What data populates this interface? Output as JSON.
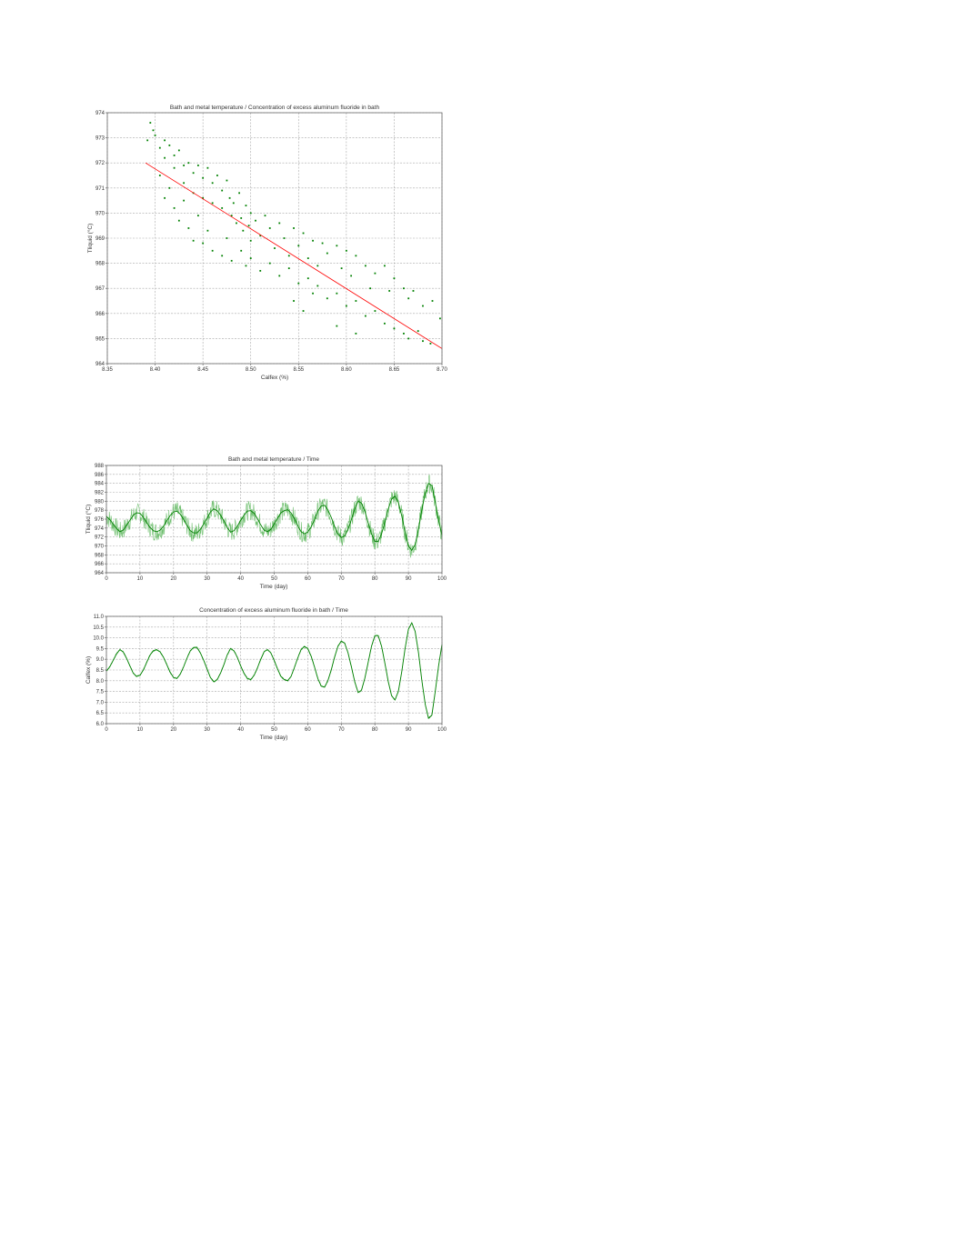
{
  "colors": {
    "points": "#008000",
    "line": "#008000",
    "band": "#6fbf6f",
    "regression": "#ff0000",
    "grid": "#a8a8a8"
  },
  "chart_data": [
    {
      "type": "scatter",
      "title": "Bath and metal temperature / Concentration of excess aluminum fluoride in bath",
      "xlabel": "Calfex (%)",
      "ylabel": "Tliquid (°C)",
      "xlim": [
        8.35,
        8.7
      ],
      "ylim": [
        964,
        974
      ],
      "xticks": [
        "8.35",
        "8.40",
        "8.45",
        "8.50",
        "8.55",
        "8.60",
        "8.65",
        "8.70"
      ],
      "yticks": [
        "964",
        "965",
        "966",
        "967",
        "968",
        "969",
        "970",
        "971",
        "972",
        "973",
        "974"
      ],
      "grid": true,
      "points": [
        [
          8.395,
          973.6
        ],
        [
          8.398,
          973.3
        ],
        [
          8.392,
          972.9
        ],
        [
          8.4,
          973.1
        ],
        [
          8.405,
          972.6
        ],
        [
          8.41,
          972.9
        ],
        [
          8.41,
          972.2
        ],
        [
          8.415,
          972.7
        ],
        [
          8.42,
          972.3
        ],
        [
          8.42,
          971.8
        ],
        [
          8.425,
          972.5
        ],
        [
          8.43,
          971.9
        ],
        [
          8.43,
          971.2
        ],
        [
          8.435,
          972.0
        ],
        [
          8.44,
          971.6
        ],
        [
          8.44,
          970.8
        ],
        [
          8.445,
          971.9
        ],
        [
          8.45,
          971.4
        ],
        [
          8.45,
          970.6
        ],
        [
          8.455,
          971.8
        ],
        [
          8.46,
          971.2
        ],
        [
          8.46,
          970.4
        ],
        [
          8.465,
          971.5
        ],
        [
          8.47,
          970.9
        ],
        [
          8.47,
          970.2
        ],
        [
          8.475,
          971.3
        ],
        [
          8.478,
          970.6
        ],
        [
          8.48,
          969.9
        ],
        [
          8.482,
          970.4
        ],
        [
          8.485,
          969.6
        ],
        [
          8.488,
          970.8
        ],
        [
          8.49,
          969.8
        ],
        [
          8.492,
          969.3
        ],
        [
          8.495,
          970.3
        ],
        [
          8.498,
          969.5
        ],
        [
          8.5,
          968.9
        ],
        [
          8.5,
          970.0
        ],
        [
          8.505,
          969.7
        ],
        [
          8.51,
          969.1
        ],
        [
          8.515,
          969.9
        ],
        [
          8.52,
          969.4
        ],
        [
          8.525,
          968.6
        ],
        [
          8.53,
          969.6
        ],
        [
          8.535,
          969.0
        ],
        [
          8.54,
          968.3
        ],
        [
          8.545,
          969.4
        ],
        [
          8.55,
          968.7
        ],
        [
          8.555,
          969.2
        ],
        [
          8.56,
          968.2
        ],
        [
          8.565,
          968.9
        ],
        [
          8.57,
          967.9
        ],
        [
          8.575,
          968.8
        ],
        [
          8.58,
          968.4
        ],
        [
          8.59,
          968.7
        ],
        [
          8.595,
          967.8
        ],
        [
          8.6,
          968.5
        ],
        [
          8.605,
          967.5
        ],
        [
          8.61,
          968.3
        ],
        [
          8.62,
          967.9
        ],
        [
          8.625,
          967.0
        ],
        [
          8.63,
          967.6
        ],
        [
          8.64,
          967.9
        ],
        [
          8.645,
          966.9
        ],
        [
          8.65,
          967.4
        ],
        [
          8.66,
          967.0
        ],
        [
          8.665,
          966.6
        ],
        [
          8.67,
          966.9
        ],
        [
          8.68,
          966.3
        ],
        [
          8.69,
          966.5
        ],
        [
          8.698,
          965.8
        ],
        [
          8.405,
          971.5
        ],
        [
          8.41,
          970.6
        ],
        [
          8.415,
          971.0
        ],
        [
          8.42,
          970.2
        ],
        [
          8.425,
          969.7
        ],
        [
          8.43,
          970.5
        ],
        [
          8.435,
          969.4
        ],
        [
          8.44,
          968.9
        ],
        [
          8.445,
          969.9
        ],
        [
          8.45,
          968.8
        ],
        [
          8.455,
          969.3
        ],
        [
          8.46,
          968.5
        ],
        [
          8.47,
          968.3
        ],
        [
          8.475,
          969.0
        ],
        [
          8.48,
          968.1
        ],
        [
          8.49,
          968.5
        ],
        [
          8.495,
          967.9
        ],
        [
          8.5,
          968.2
        ],
        [
          8.51,
          967.7
        ],
        [
          8.52,
          968.0
        ],
        [
          8.53,
          967.5
        ],
        [
          8.54,
          967.8
        ],
        [
          8.55,
          967.2
        ],
        [
          8.56,
          967.4
        ],
        [
          8.565,
          966.8
        ],
        [
          8.57,
          967.1
        ],
        [
          8.58,
          966.6
        ],
        [
          8.59,
          966.8
        ],
        [
          8.6,
          966.3
        ],
        [
          8.61,
          966.5
        ],
        [
          8.62,
          965.9
        ],
        [
          8.63,
          966.1
        ],
        [
          8.64,
          965.6
        ],
        [
          8.65,
          965.4
        ],
        [
          8.66,
          965.2
        ],
        [
          8.665,
          965.0
        ],
        [
          8.675,
          965.3
        ],
        [
          8.68,
          964.9
        ],
        [
          8.688,
          964.8
        ],
        [
          8.545,
          966.5
        ],
        [
          8.555,
          966.1
        ],
        [
          8.59,
          965.5
        ],
        [
          8.61,
          965.2
        ]
      ],
      "regression": {
        "x": [
          8.39,
          8.7
        ],
        "y": [
          972.0,
          964.6
        ]
      }
    },
    {
      "type": "line",
      "title": "Bath and metal temperature / Time",
      "xlabel": "Time (day)",
      "ylabel": "Tliquid (°C)",
      "xlim": [
        0,
        100
      ],
      "ylim": [
        964,
        988
      ],
      "xticks": [
        "0",
        "10",
        "20",
        "30",
        "40",
        "50",
        "60",
        "70",
        "80",
        "90",
        "100"
      ],
      "yticks": [
        "964",
        "966",
        "968",
        "970",
        "972",
        "974",
        "976",
        "978",
        "980",
        "982",
        "984",
        "986",
        "988"
      ],
      "grid": true,
      "y": [
        976.6,
        975.9,
        974.9,
        973.9,
        973.2,
        973.5,
        974.6,
        975.7,
        976.9,
        977.4,
        977.3,
        976.4,
        975.2,
        974.1,
        973.4,
        973.2,
        973.5,
        974.4,
        975.6,
        976.8,
        977.6,
        977.8,
        977.1,
        975.9,
        974.6,
        973.4,
        972.9,
        972.9,
        973.7,
        974.9,
        976.2,
        977.6,
        978.3,
        977.9,
        976.9,
        975.6,
        974.1,
        973.1,
        973.4,
        974.4,
        975.7,
        976.9,
        977.8,
        977.9,
        977.3,
        976.1,
        974.7,
        973.5,
        973.2,
        973.7,
        974.9,
        976.2,
        977.4,
        977.9,
        978.1,
        977.4,
        976.1,
        974.6,
        973.2,
        972.7,
        973.1,
        974.2,
        975.9,
        977.8,
        978.9,
        979.1,
        978.1,
        976.4,
        974.4,
        972.7,
        971.9,
        972.2,
        973.7,
        975.9,
        978.3,
        980.0,
        979.6,
        977.8,
        975.2,
        972.7,
        971.0,
        971.0,
        972.7,
        975.4,
        978.3,
        980.5,
        981.1,
        979.8,
        976.8,
        973.1,
        970.0,
        969.0,
        970.3,
        973.7,
        978.1,
        981.8,
        984.0,
        983.5,
        979.8,
        975.7,
        972.4
      ]
    },
    {
      "type": "line",
      "title": "Concentration of excess aluminum fluoride in bath / Time",
      "xlabel": "Time (day)",
      "ylabel": "Calfex (%)",
      "xlim": [
        0,
        100
      ],
      "ylim": [
        6.0,
        11.0
      ],
      "xticks": [
        "0",
        "10",
        "20",
        "30",
        "40",
        "50",
        "60",
        "70",
        "80",
        "90",
        "100"
      ],
      "yticks": [
        "6.0",
        "6.5",
        "7.0",
        "7.5",
        "8.0",
        "8.5",
        "9.0",
        "9.5",
        "10.0",
        "10.5",
        "11.0"
      ],
      "grid": true,
      "y": [
        8.45,
        8.65,
        8.95,
        9.25,
        9.45,
        9.35,
        9.05,
        8.7,
        8.35,
        8.2,
        8.25,
        8.5,
        8.85,
        9.2,
        9.4,
        9.45,
        9.35,
        9.1,
        8.75,
        8.4,
        8.15,
        8.1,
        8.3,
        8.65,
        9.05,
        9.4,
        9.55,
        9.55,
        9.3,
        8.95,
        8.55,
        8.15,
        7.95,
        8.05,
        8.35,
        8.75,
        9.2,
        9.5,
        9.4,
        9.1,
        8.7,
        8.35,
        8.1,
        8.05,
        8.25,
        8.6,
        9.0,
        9.35,
        9.45,
        9.3,
        8.95,
        8.55,
        8.2,
        8.05,
        8.0,
        8.2,
        8.6,
        9.05,
        9.45,
        9.6,
        9.5,
        9.15,
        8.65,
        8.1,
        7.75,
        7.7,
        8.0,
        8.5,
        9.1,
        9.6,
        9.85,
        9.75,
        9.3,
        8.65,
        7.95,
        7.45,
        7.55,
        8.1,
        8.85,
        9.6,
        10.1,
        10.1,
        9.6,
        8.8,
        7.95,
        7.3,
        7.1,
        7.5,
        8.4,
        9.5,
        10.4,
        10.7,
        10.3,
        9.3,
        8.0,
        6.9,
        6.25,
        6.4,
        7.5,
        8.7,
        9.7
      ]
    }
  ]
}
